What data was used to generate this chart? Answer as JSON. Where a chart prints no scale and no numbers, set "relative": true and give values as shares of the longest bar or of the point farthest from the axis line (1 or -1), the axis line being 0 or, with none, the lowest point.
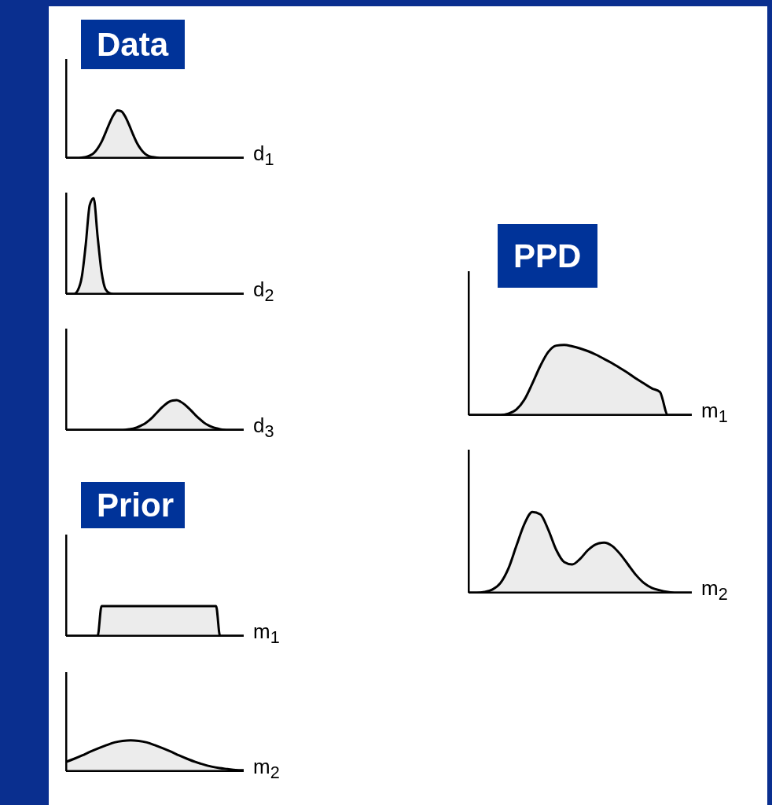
{
  "chart_data": [
    {
      "type": "area",
      "title": "Data",
      "xlabel": "d$_{1}$",
      "relative": true,
      "color": "#ececec",
      "categories": [
        null,
        null,
        null,
        null,
        null,
        null,
        null,
        null,
        null,
        null,
        null,
        null,
        null,
        null,
        null,
        null,
        null,
        null,
        null,
        null,
        null,
        null,
        null,
        null,
        null,
        null,
        null,
        null,
        null,
        null,
        null,
        null,
        null,
        null,
        null,
        null,
        null,
        null,
        null,
        null,
        null,
        null,
        null,
        null,
        null,
        null
      ],
      "values": [
        0,
        0,
        0,
        0,
        0.01,
        0.02,
        0.05,
        0.1,
        0.2,
        0.34,
        0.53,
        0.73,
        0.9,
        1,
        0.98,
        0.87,
        0.69,
        0.49,
        0.31,
        0.18,
        0.09,
        0.04,
        0.02,
        0.01,
        0,
        0,
        0,
        0,
        0,
        0,
        0,
        0,
        0,
        0,
        0,
        0,
        0,
        0,
        0,
        0,
        0,
        0,
        0,
        0,
        0,
        0
      ]
    },
    {
      "type": "area",
      "xlabel": "d$_{2}$",
      "relative": true,
      "color": "#ececec",
      "categories": [
        null,
        null,
        null,
        null,
        null,
        null,
        null,
        null,
        null,
        null,
        null,
        null,
        null,
        null,
        null,
        null,
        null,
        null,
        null,
        null,
        null,
        null,
        null,
        null,
        null,
        null,
        null,
        null,
        null,
        null,
        null,
        null,
        null,
        null,
        null,
        null,
        null,
        null,
        null,
        null,
        null,
        null,
        null,
        null,
        null,
        null
      ],
      "values": [
        0,
        0,
        0,
        0.04,
        0.18,
        0.52,
        0.93,
        1,
        0.6,
        0.23,
        0.05,
        0.01,
        0,
        0,
        0,
        0,
        0,
        0,
        0,
        0,
        0,
        0,
        0,
        0,
        0,
        0,
        0,
        0,
        0,
        0,
        0,
        0,
        0,
        0,
        0,
        0,
        0,
        0,
        0,
        0,
        0,
        0,
        0,
        0,
        0,
        0
      ]
    },
    {
      "type": "area",
      "xlabel": "d$_{3}$",
      "relative": true,
      "color": "#ececec",
      "categories": [
        null,
        null,
        null,
        null,
        null,
        null,
        null,
        null,
        null,
        null,
        null,
        null,
        null,
        null,
        null,
        null,
        null,
        null,
        null,
        null,
        null,
        null,
        null,
        null,
        null,
        null,
        null,
        null,
        null,
        null,
        null,
        null,
        null,
        null,
        null,
        null,
        null,
        null,
        null,
        null,
        null,
        null,
        null,
        null,
        null,
        null
      ],
      "values": [
        0,
        0,
        0,
        0,
        0,
        0,
        0,
        0,
        0,
        0,
        0,
        0,
        0,
        0,
        0,
        0.01,
        0.03,
        0.05,
        0.09,
        0.15,
        0.22,
        0.32,
        0.44,
        0.58,
        0.72,
        0.84,
        0.94,
        0.99,
        1,
        0.95,
        0.86,
        0.74,
        0.61,
        0.47,
        0.35,
        0.24,
        0.16,
        0.1,
        0.06,
        0.03,
        0.01,
        0,
        0,
        0,
        0,
        0
      ]
    },
    {
      "type": "area",
      "title": "Prior",
      "xlabel": "m$_{1}$",
      "relative": true,
      "color": "#ececec",
      "categories": [
        null,
        null,
        null,
        null,
        null,
        null,
        null,
        null,
        null,
        null,
        null,
        null,
        null,
        null,
        null,
        null,
        null,
        null,
        null,
        null,
        null,
        null,
        null,
        null,
        null,
        null,
        null,
        null,
        null,
        null,
        null,
        null,
        null,
        null,
        null,
        null,
        null,
        null,
        null,
        null,
        null,
        null,
        null,
        null,
        null,
        null
      ],
      "values": [
        0,
        0,
        0,
        0,
        0,
        0,
        0,
        0,
        0,
        1,
        1,
        1,
        1,
        1,
        1,
        1,
        1,
        1,
        1,
        1,
        1,
        1,
        1,
        1,
        1,
        1,
        1,
        1,
        1,
        1,
        1,
        1,
        1,
        1,
        1,
        1,
        1,
        1,
        1,
        0,
        0,
        0,
        0,
        0,
        0,
        0
      ]
    },
    {
      "type": "area",
      "xlabel": "m$_{2}$",
      "relative": true,
      "color": "#ececec",
      "categories": [
        null,
        null,
        null,
        null,
        null,
        null,
        null,
        null,
        null,
        null,
        null,
        null,
        null,
        null,
        null,
        null,
        null,
        null,
        null,
        null,
        null,
        null,
        null
      ],
      "values": [
        0.3,
        0.4,
        0.51,
        0.63,
        0.74,
        0.84,
        0.93,
        0.98,
        1,
        0.98,
        0.93,
        0.84,
        0.74,
        0.63,
        0.51,
        0.4,
        0.3,
        0.22,
        0.15,
        0.1,
        0.07,
        0.04,
        0.03
      ]
    },
    {
      "type": "area",
      "title": "PPD",
      "xlabel": "m$_{1}$",
      "relative": true,
      "color": "#ececec",
      "categories": [
        null,
        null,
        null,
        null,
        null,
        null,
        null,
        null,
        null,
        null,
        null,
        null,
        null,
        null,
        null,
        null,
        null,
        null,
        null,
        null,
        null,
        null,
        null,
        null,
        null,
        null,
        null,
        null,
        null
      ],
      "values": [
        0,
        0,
        0,
        0,
        0,
        0.02,
        0.08,
        0.22,
        0.45,
        0.7,
        0.9,
        0.99,
        1,
        0.98,
        0.95,
        0.91,
        0.86,
        0.8,
        0.74,
        0.67,
        0.6,
        0.52,
        0.45,
        0.38,
        0.33,
        0,
        0,
        0,
        0
      ]
    },
    {
      "type": "area",
      "xlabel": "m$_{2}$",
      "relative": true,
      "color": "#ececec",
      "categories": [
        null,
        null,
        null,
        null,
        null,
        null,
        null,
        null,
        null,
        null,
        null,
        null,
        null,
        null,
        null,
        null,
        null,
        null,
        null,
        null,
        null,
        null,
        null,
        null,
        null,
        null,
        null,
        null,
        null
      ],
      "values": [
        0,
        0,
        0.01,
        0.04,
        0.12,
        0.3,
        0.58,
        0.85,
        1,
        0.97,
        0.78,
        0.53,
        0.38,
        0.35,
        0.42,
        0.53,
        0.6,
        0.62,
        0.58,
        0.48,
        0.35,
        0.22,
        0.12,
        0.06,
        0.03,
        0.01,
        0,
        0,
        0
      ]
    }
  ]
}
